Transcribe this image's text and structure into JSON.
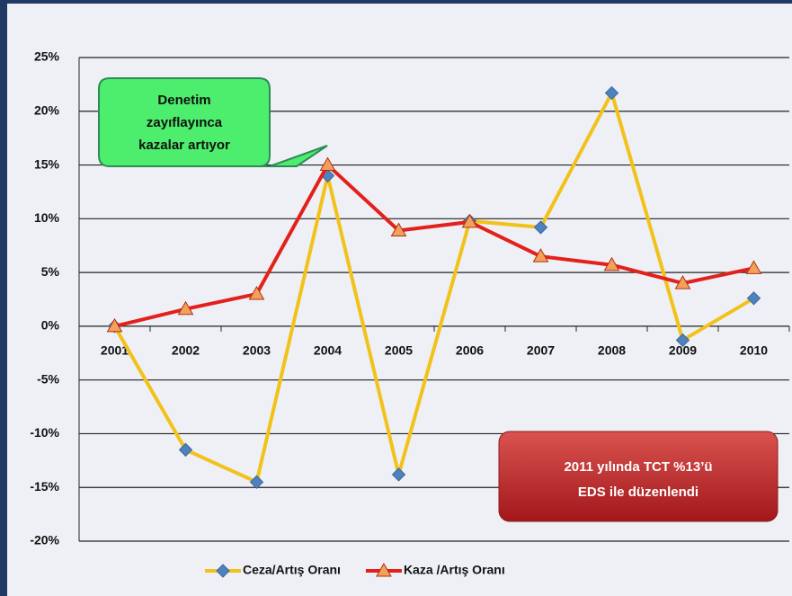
{
  "chart_data": {
    "type": "line",
    "categories": [
      "2001",
      "2002",
      "2003",
      "2004",
      "2005",
      "2006",
      "2007",
      "2008",
      "2009",
      "2010"
    ],
    "series": [
      {
        "name": "Ceza/Artış Oranı",
        "color": "#f2c21b",
        "marker_color": "#4f81bd",
        "marker": "diamond",
        "values": [
          0,
          -11.5,
          -14.5,
          14,
          -13.8,
          9.8,
          9.2,
          21.7,
          -1.3,
          2.6
        ]
      },
      {
        "name": "Kaza /Artış Oranı",
        "color": "#e3211c",
        "marker_color": "#f5a05a",
        "marker": "triangle",
        "values": [
          0,
          1.6,
          3,
          15,
          8.9,
          9.7,
          6.5,
          5.7,
          4,
          5.4
        ]
      }
    ],
    "ylim": [
      -20,
      25
    ],
    "yticks": [
      {
        "value": -20,
        "label": "-20%"
      },
      {
        "value": -15,
        "label": "-15%"
      },
      {
        "value": -10,
        "label": "-10%"
      },
      {
        "value": -5,
        "label": "-5%"
      },
      {
        "value": 0,
        "label": "0%"
      },
      {
        "value": 5,
        "label": "5%"
      },
      {
        "value": 10,
        "label": "10%"
      },
      {
        "value": 15,
        "label": "15%"
      },
      {
        "value": 20,
        "label": "20%"
      },
      {
        "value": 25,
        "label": "25%"
      }
    ],
    "grid": true,
    "legend": "bottom",
    "annotations": [
      [
        "Denetim",
        "zayıflayınca",
        "kazalar artıyor"
      ],
      [
        "2011 yılında TCT %13’ü",
        "EDS ile düzenlendi"
      ]
    ]
  }
}
